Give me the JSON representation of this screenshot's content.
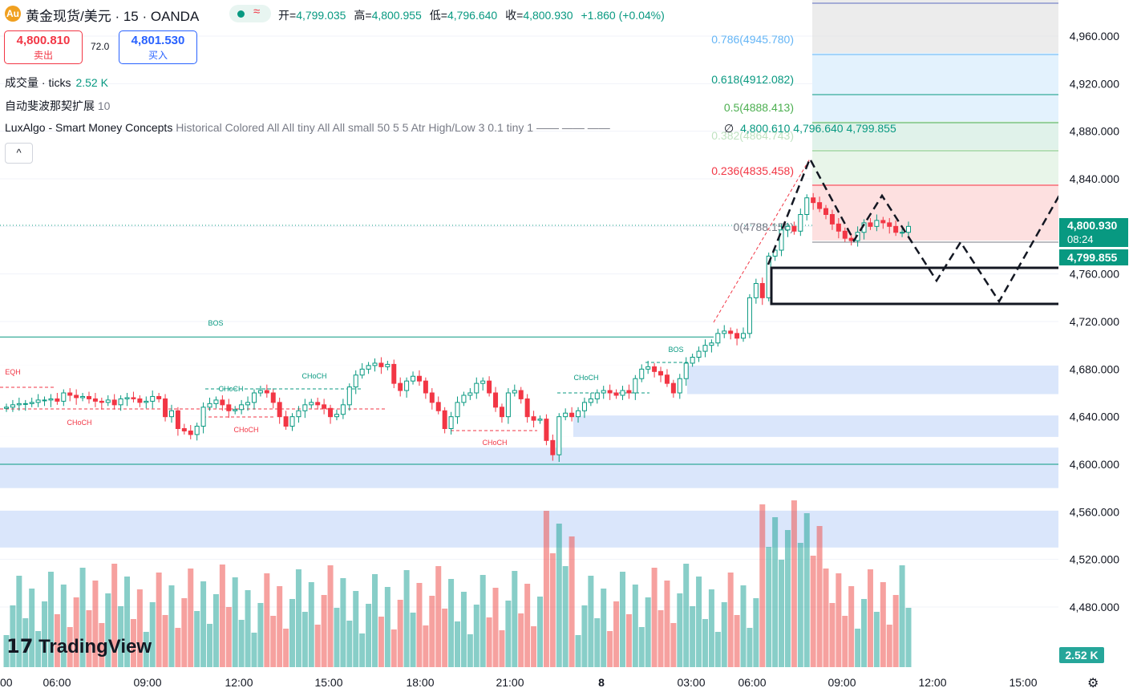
{
  "header": {
    "symbol": "黄金现货/美元 · 15 · OANDA",
    "open_label": "开",
    "open": "4,799.035",
    "high_label": "高",
    "high": "4,800.955",
    "low_label": "低",
    "low": "4,796.640",
    "close_label": "收",
    "close": "4,800.930",
    "change": "+1.860 (+0.04%)",
    "sell_price": "4,800.810",
    "sell_label": "卖出",
    "spread": "72.0",
    "buy_price": "4,801.530",
    "buy_label": "买入",
    "collapse_icon": "chevron-up-icon"
  },
  "indicators": {
    "volume": {
      "name": "成交量 · ticks",
      "value": "2.52 K"
    },
    "fib": {
      "name": "自动斐波那契扩展",
      "value": "10"
    },
    "lux": {
      "name": "LuxAlgo - Smart Money Concepts",
      "params": "Historical Colored All All tiny All All small 50 5 5 Atr High/Low 3 0.1 tiny 1"
    },
    "lux_values": {
      "symbol": "∅",
      "v1": "4,800.610",
      "v2": "4,796.640",
      "v3": "4,799.855"
    }
  },
  "price_axis": {
    "ticks": [
      "4,960.000",
      "4,920.000",
      "4,880.000",
      "4,840.000",
      "4,760.000",
      "4,720.000",
      "4,680.000",
      "4,640.000",
      "4,600.000",
      "4,560.000",
      "4,520.000",
      "4,480.000"
    ],
    "last_price": "4,800.930",
    "countdown": "08:24",
    "mid_price": "4,799.855",
    "volume_last": "2.52 K"
  },
  "time_axis": [
    "00",
    "06:00",
    "09:00",
    "12:00",
    "15:00",
    "18:00",
    "21:00",
    "8",
    "03:00",
    "06:00",
    "09:00",
    "12:00",
    "15:00"
  ],
  "chart_data": {
    "type": "candlestick",
    "title": "黄金现货/美元 · 15 · OANDA",
    "y_range": [
      4440,
      4990
    ],
    "fib_levels": [
      {
        "label": "0.786(4945.780)",
        "ratio": 0.786,
        "value": 4945.78
      },
      {
        "label": "0.618(4912.082)",
        "ratio": 0.618,
        "value": 4912.082
      },
      {
        "label": "0.5(4888.413)",
        "ratio": 0.5,
        "value": 4888.413
      },
      {
        "label": "0.382(4864.743)",
        "ratio": 0.382,
        "value": 4864.743
      },
      {
        "label": "0.236(4835.458)",
        "ratio": 0.236,
        "value": 4835.458
      },
      {
        "label": "0(4788.150)",
        "ratio": 0,
        "value": 4788.15
      }
    ],
    "annotations": [
      "BOS",
      "BOS",
      "EQH",
      "CHoCH",
      "CHoCH",
      "CHoCH",
      "CHoCH",
      "CHoCH",
      "CHoCH"
    ],
    "colors": {
      "up": "#089981",
      "down": "#f23645",
      "vol_up": "#26a69a",
      "vol_down": "#ef5350"
    },
    "candles_close_approx": [
      4648,
      4650,
      4651,
      4651,
      4652,
      4654,
      4654,
      4655,
      4653,
      4660,
      4658,
      4656,
      4657,
      4655,
      4653,
      4652,
      4654,
      4650,
      4655,
      4656,
      4655,
      4652,
      4653,
      4657,
      4655,
      4640,
      4645,
      4630,
      4628,
      4625,
      4632,
      4648,
      4651,
      4654,
      4650,
      4645,
      4646,
      4650,
      4652,
      4660,
      4662,
      4660,
      4652,
      4640,
      4632,
      4640,
      4645,
      4650,
      4652,
      4650,
      4647,
      4640,
      4642,
      4650,
      4665,
      4675,
      4680,
      4683,
      4685,
      4682,
      4684,
      4668,
      4662,
      4670,
      4674,
      4670,
      4660,
      4652,
      4645,
      4630,
      4640,
      4652,
      4658,
      4660,
      4668,
      4670,
      4660,
      4648,
      4640,
      4660,
      4662,
      4655,
      4640,
      4637,
      4638,
      4620,
      4608,
      4640,
      4643,
      4640,
      4645,
      4652,
      4655,
      4660,
      4662,
      4660,
      4658,
      4662,
      4660,
      4672,
      4680,
      4682,
      4678,
      4675,
      4668,
      4660,
      4672,
      4685,
      4690,
      4695,
      4700,
      4702,
      4710,
      4712,
      4710,
      4706,
      4710,
      4740,
      4752,
      4740,
      4775,
      4780,
      4797,
      4800,
      4796,
      4810,
      4824,
      4820,
      4815,
      4810,
      4802,
      4796,
      4790,
      4788,
      4795,
      4803,
      4800,
      4805,
      4803,
      4800,
      4795,
      4795,
      4800
    ]
  }
}
